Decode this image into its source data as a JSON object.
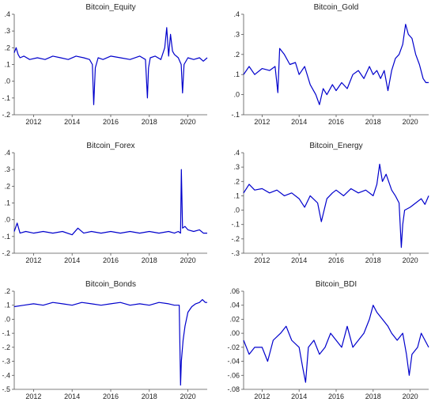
{
  "chart_data": [
    {
      "type": "line",
      "title": "Bitcoin_Equity",
      "xlabel": "",
      "ylabel": "",
      "xlim": [
        2011.0,
        2021.0
      ],
      "ylim": [
        -0.2,
        0.4
      ],
      "x_ticks": [
        2012,
        2014,
        2016,
        2018,
        2020
      ],
      "y_ticks": [
        -0.2,
        -0.1,
        0.0,
        0.1,
        0.2,
        0.3,
        0.4
      ],
      "y_tick_labels": [
        "-.2",
        "-.1",
        ".0",
        ".1",
        ".2",
        ".3",
        ".4"
      ],
      "grid": false,
      "color": "#0000cc",
      "series": [
        {
          "x": [
            2011.0,
            2011.1,
            2011.2,
            2011.3,
            2011.5,
            2011.8,
            2012.2,
            2012.6,
            2013.0,
            2013.4,
            2013.8,
            2014.2,
            2014.6,
            2014.9,
            2015.05,
            2015.12,
            2015.2,
            2015.35,
            2015.6,
            2016.0,
            2016.5,
            2017.0,
            2017.5,
            2017.8,
            2017.9,
            2017.96,
            2018.05,
            2018.3,
            2018.6,
            2018.8,
            2018.9,
            2019.0,
            2019.1,
            2019.2,
            2019.3,
            2019.5,
            2019.65,
            2019.72,
            2019.8,
            2020.0,
            2020.3,
            2020.6,
            2020.8,
            2021.0
          ],
          "y": [
            0.17,
            0.2,
            0.16,
            0.14,
            0.15,
            0.13,
            0.14,
            0.13,
            0.15,
            0.14,
            0.13,
            0.15,
            0.14,
            0.13,
            0.1,
            -0.14,
            0.08,
            0.14,
            0.13,
            0.15,
            0.14,
            0.13,
            0.15,
            0.13,
            -0.1,
            0.08,
            0.14,
            0.15,
            0.13,
            0.2,
            0.32,
            0.15,
            0.28,
            0.18,
            0.16,
            0.14,
            0.1,
            -0.07,
            0.1,
            0.14,
            0.13,
            0.14,
            0.12,
            0.14
          ]
        }
      ]
    },
    {
      "type": "line",
      "title": "Bitcoin_Gold",
      "xlabel": "",
      "ylabel": "",
      "xlim": [
        2011.0,
        2021.0
      ],
      "ylim": [
        -0.1,
        0.4
      ],
      "x_ticks": [
        2012,
        2014,
        2016,
        2018,
        2020
      ],
      "y_ticks": [
        -0.1,
        0.0,
        0.1,
        0.2,
        0.3,
        0.4
      ],
      "y_tick_labels": [
        "-.1",
        ".0",
        ".1",
        ".2",
        ".3",
        ".4"
      ],
      "grid": false,
      "color": "#0000cc",
      "series": [
        {
          "x": [
            2011.0,
            2011.3,
            2011.6,
            2012.0,
            2012.4,
            2012.7,
            2012.85,
            2012.95,
            2013.2,
            2013.5,
            2013.8,
            2014.0,
            2014.3,
            2014.6,
            2014.9,
            2015.1,
            2015.3,
            2015.5,
            2015.8,
            2016.0,
            2016.3,
            2016.6,
            2016.9,
            2017.2,
            2017.5,
            2017.8,
            2018.0,
            2018.2,
            2018.4,
            2018.6,
            2018.8,
            2019.0,
            2019.2,
            2019.4,
            2019.6,
            2019.75,
            2019.9,
            2020.1,
            2020.3,
            2020.5,
            2020.7,
            2020.85,
            2021.0
          ],
          "y": [
            0.1,
            0.14,
            0.1,
            0.13,
            0.12,
            0.14,
            0.01,
            0.23,
            0.2,
            0.15,
            0.16,
            0.1,
            0.14,
            0.05,
            0.0,
            -0.05,
            0.03,
            0.0,
            0.05,
            0.02,
            0.06,
            0.03,
            0.1,
            0.12,
            0.08,
            0.14,
            0.1,
            0.12,
            0.08,
            0.12,
            0.02,
            0.12,
            0.18,
            0.2,
            0.25,
            0.35,
            0.3,
            0.28,
            0.2,
            0.15,
            0.08,
            0.06,
            0.06
          ]
        }
      ]
    },
    {
      "type": "line",
      "title": "Bitcoin_Forex",
      "xlabel": "",
      "ylabel": "",
      "xlim": [
        2011.0,
        2021.0
      ],
      "ylim": [
        -0.2,
        0.4
      ],
      "x_ticks": [
        2012,
        2014,
        2016,
        2018,
        2020
      ],
      "y_ticks": [
        -0.2,
        -0.1,
        0.0,
        0.1,
        0.2,
        0.3,
        0.4
      ],
      "y_tick_labels": [
        "-.2",
        "-.1",
        ".0",
        ".1",
        ".2",
        ".3",
        ".4"
      ],
      "grid": false,
      "color": "#0000cc",
      "series": [
        {
          "x": [
            2011.0,
            2011.15,
            2011.3,
            2011.6,
            2012.0,
            2012.5,
            2013.0,
            2013.5,
            2014.0,
            2014.3,
            2014.6,
            2015.0,
            2015.5,
            2016.0,
            2016.5,
            2017.0,
            2017.5,
            2018.0,
            2018.5,
            2019.0,
            2019.3,
            2019.5,
            2019.62,
            2019.66,
            2019.72,
            2019.85,
            2020.0,
            2020.3,
            2020.6,
            2020.8,
            2021.0
          ],
          "y": [
            -0.07,
            -0.02,
            -0.08,
            -0.07,
            -0.08,
            -0.07,
            -0.08,
            -0.07,
            -0.09,
            -0.05,
            -0.08,
            -0.07,
            -0.08,
            -0.07,
            -0.08,
            -0.07,
            -0.08,
            -0.07,
            -0.08,
            -0.07,
            -0.08,
            -0.07,
            -0.08,
            0.3,
            -0.05,
            -0.04,
            -0.06,
            -0.07,
            -0.06,
            -0.08,
            -0.08
          ]
        }
      ]
    },
    {
      "type": "line",
      "title": "Bitcoin_Energy",
      "xlabel": "",
      "ylabel": "",
      "xlim": [
        2011.0,
        2021.0
      ],
      "ylim": [
        -0.3,
        0.4
      ],
      "x_ticks": [
        2012,
        2014,
        2016,
        2018,
        2020
      ],
      "y_ticks": [
        -0.3,
        -0.2,
        -0.1,
        0.0,
        0.1,
        0.2,
        0.3,
        0.4
      ],
      "y_tick_labels": [
        "-.3",
        "-.2",
        "-.1",
        ".0",
        ".1",
        ".2",
        ".3",
        ".4"
      ],
      "grid": false,
      "color": "#0000cc",
      "series": [
        {
          "x": [
            2011.0,
            2011.3,
            2011.6,
            2012.0,
            2012.4,
            2012.8,
            2013.2,
            2013.6,
            2014.0,
            2014.3,
            2014.6,
            2015.0,
            2015.2,
            2015.5,
            2015.8,
            2016.0,
            2016.4,
            2016.8,
            2017.2,
            2017.6,
            2018.0,
            2018.2,
            2018.35,
            2018.5,
            2018.7,
            2019.0,
            2019.2,
            2019.4,
            2019.52,
            2019.6,
            2019.7,
            2020.0,
            2020.3,
            2020.6,
            2020.8,
            2021.0
          ],
          "y": [
            0.12,
            0.18,
            0.14,
            0.15,
            0.12,
            0.14,
            0.1,
            0.12,
            0.08,
            0.02,
            0.1,
            0.05,
            -0.08,
            0.08,
            0.12,
            0.14,
            0.1,
            0.15,
            0.12,
            0.14,
            0.1,
            0.18,
            0.32,
            0.2,
            0.25,
            0.14,
            0.1,
            0.05,
            -0.26,
            -0.1,
            0.0,
            0.02,
            0.05,
            0.08,
            0.04,
            0.1
          ]
        }
      ]
    },
    {
      "type": "line",
      "title": "Bitcoin_Bonds",
      "xlabel": "",
      "ylabel": "",
      "xlim": [
        2011.0,
        2021.0
      ],
      "ylim": [
        -0.5,
        0.2
      ],
      "x_ticks": [
        2012,
        2014,
        2016,
        2018,
        2020
      ],
      "y_ticks": [
        -0.5,
        -0.4,
        -0.3,
        -0.2,
        -0.1,
        0.0,
        0.1,
        0.2
      ],
      "y_tick_labels": [
        "-.5",
        "-.4",
        "-.3",
        "-.2",
        "-.1",
        ".0",
        ".1",
        ".2"
      ],
      "grid": false,
      "color": "#0000cc",
      "series": [
        {
          "x": [
            2011.0,
            2011.5,
            2012.0,
            2012.5,
            2013.0,
            2013.5,
            2014.0,
            2014.5,
            2015.0,
            2015.5,
            2016.0,
            2016.5,
            2017.0,
            2017.5,
            2018.0,
            2018.5,
            2019.0,
            2019.3,
            2019.55,
            2019.62,
            2019.66,
            2019.75,
            2019.85,
            2020.0,
            2020.2,
            2020.4,
            2020.6,
            2020.75,
            2020.9,
            2021.0
          ],
          "y": [
            0.09,
            0.1,
            0.11,
            0.1,
            0.12,
            0.11,
            0.1,
            0.12,
            0.11,
            0.1,
            0.11,
            0.12,
            0.1,
            0.11,
            0.1,
            0.12,
            0.11,
            0.1,
            0.1,
            -0.47,
            -0.3,
            -0.15,
            -0.05,
            0.05,
            0.09,
            0.11,
            0.12,
            0.14,
            0.12,
            0.12
          ]
        }
      ]
    },
    {
      "type": "line",
      "title": "Bitcoin_BDI",
      "xlabel": "",
      "ylabel": "",
      "xlim": [
        2011.0,
        2021.0
      ],
      "ylim": [
        -0.08,
        0.06
      ],
      "x_ticks": [
        2012,
        2014,
        2016,
        2018,
        2020
      ],
      "y_ticks": [
        -0.08,
        -0.06,
        -0.04,
        -0.02,
        0.0,
        0.02,
        0.04,
        0.06
      ],
      "y_tick_labels": [
        "-.08",
        "-.06",
        "-.04",
        "-.02",
        ".00",
        ".02",
        ".04",
        ".06"
      ],
      "grid": false,
      "color": "#0000cc",
      "series": [
        {
          "x": [
            2011.0,
            2011.3,
            2011.6,
            2012.0,
            2012.3,
            2012.6,
            2013.0,
            2013.3,
            2013.6,
            2014.0,
            2014.2,
            2014.35,
            2014.5,
            2014.8,
            2015.1,
            2015.4,
            2015.7,
            2016.0,
            2016.3,
            2016.6,
            2016.9,
            2017.2,
            2017.5,
            2017.8,
            2018.0,
            2018.2,
            2018.5,
            2018.8,
            2019.0,
            2019.3,
            2019.6,
            2019.8,
            2019.95,
            2020.1,
            2020.4,
            2020.6,
            2020.8,
            2021.0
          ],
          "y": [
            -0.01,
            -0.03,
            -0.02,
            -0.02,
            -0.04,
            -0.01,
            0.0,
            0.01,
            -0.01,
            -0.02,
            -0.05,
            -0.07,
            -0.02,
            -0.01,
            -0.03,
            -0.02,
            0.0,
            -0.01,
            -0.02,
            0.01,
            -0.02,
            -0.01,
            0.0,
            0.02,
            0.04,
            0.03,
            0.02,
            0.01,
            0.0,
            -0.01,
            0.0,
            -0.03,
            -0.06,
            -0.03,
            -0.02,
            0.0,
            -0.01,
            -0.02
          ]
        }
      ]
    }
  ]
}
